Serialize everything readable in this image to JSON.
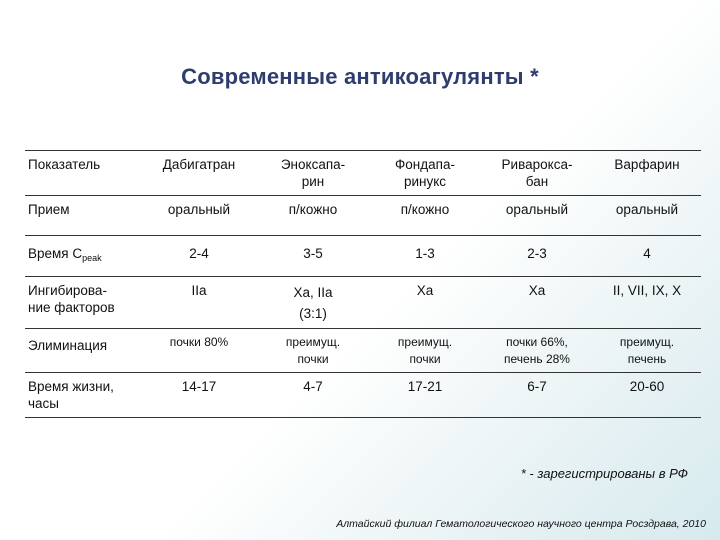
{
  "title": "Современные антикоагулянты *",
  "table": {
    "header": [
      "Показатель",
      "Дабигатран",
      "Эноксапа-\nрин",
      "Фондапа-\nринукс",
      "Риварокса-\nбан",
      "Варфарин"
    ],
    "rows": [
      {
        "label": "Прием",
        "cells": [
          "оральный",
          "п/кожно",
          "п/кожно",
          "оральный",
          "оральный"
        ]
      },
      {
        "label": "Время C",
        "label_sub": "peak",
        "cells": [
          "2-4",
          "3-5",
          "1-3",
          "2-3",
          "4"
        ]
      },
      {
        "label": "Ингибирова-\nние факторов",
        "cells": [
          "IIa",
          "Xa, IIa\n(3:1)",
          "Xa",
          "Xa",
          "II, VII, IX, X"
        ]
      },
      {
        "label": "Элиминация",
        "cells": [
          "почки 80%",
          "преимущ.\nпочки",
          "преимущ.\nпочки",
          "почки 66%,\nпечень 28%",
          "преимущ.\nпечень"
        ]
      },
      {
        "label": "Время жизни,\nчасы",
        "cells": [
          "14-17",
          "4-7",
          "17-21",
          "6-7",
          "20-60"
        ]
      }
    ]
  },
  "note": "* - зарегистрированы в РФ",
  "footer": "Алтайский филиал Гематологического научного центра Росздрава, 2010"
}
